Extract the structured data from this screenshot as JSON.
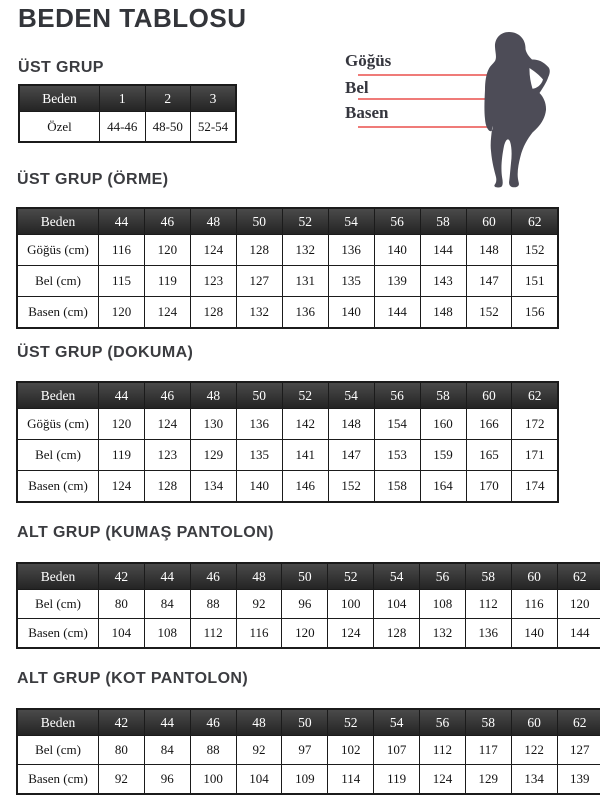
{
  "page_title": "BEDEN TABLOSU",
  "diagram": {
    "labels": [
      "Göğüs",
      "Bel",
      "Basen"
    ]
  },
  "sections": [
    {
      "heading": "ÜST GRUP",
      "table": {
        "header": [
          "Beden",
          "1",
          "2",
          "3"
        ],
        "rows": [
          [
            "Özel",
            "44-46",
            "48-50",
            "52-54"
          ]
        ]
      }
    },
    {
      "heading": "ÜST GRUP (ÖRME)",
      "table": {
        "header": [
          "Beden",
          "44",
          "46",
          "48",
          "50",
          "52",
          "54",
          "56",
          "58",
          "60",
          "62"
        ],
        "rows": [
          [
            "Göğüs (cm)",
            "116",
            "120",
            "124",
            "128",
            "132",
            "136",
            "140",
            "144",
            "148",
            "152"
          ],
          [
            "Bel (cm)",
            "115",
            "119",
            "123",
            "127",
            "131",
            "135",
            "139",
            "143",
            "147",
            "151"
          ],
          [
            "Basen (cm)",
            "120",
            "124",
            "128",
            "132",
            "136",
            "140",
            "144",
            "148",
            "152",
            "156"
          ]
        ]
      }
    },
    {
      "heading": "ÜST GRUP (DOKUMA)",
      "table": {
        "header": [
          "Beden",
          "44",
          "46",
          "48",
          "50",
          "52",
          "54",
          "56",
          "58",
          "60",
          "62"
        ],
        "rows": [
          [
            "Göğüs (cm)",
            "120",
            "124",
            "130",
            "136",
            "142",
            "148",
            "154",
            "160",
            "166",
            "172"
          ],
          [
            "Bel (cm)",
            "119",
            "123",
            "129",
            "135",
            "141",
            "147",
            "153",
            "159",
            "165",
            "171"
          ],
          [
            "Basen (cm)",
            "124",
            "128",
            "134",
            "140",
            "146",
            "152",
            "158",
            "164",
            "170",
            "174"
          ]
        ]
      }
    },
    {
      "heading": "ALT GRUP (KUMAŞ PANTOLON)",
      "table": {
        "header": [
          "Beden",
          "42",
          "44",
          "46",
          "48",
          "50",
          "52",
          "54",
          "56",
          "58",
          "60",
          "62"
        ],
        "rows": [
          [
            "Bel (cm)",
            "80",
            "84",
            "88",
            "92",
            "96",
            "100",
            "104",
            "108",
            "112",
            "116",
            "120"
          ],
          [
            "Basen (cm)",
            "104",
            "108",
            "112",
            "116",
            "120",
            "124",
            "128",
            "132",
            "136",
            "140",
            "144"
          ]
        ]
      }
    },
    {
      "heading": "ALT GRUP (KOT PANTOLON)",
      "table": {
        "header": [
          "Beden",
          "42",
          "44",
          "46",
          "48",
          "50",
          "52",
          "54",
          "56",
          "58",
          "60",
          "62"
        ],
        "rows": [
          [
            "Bel (cm)",
            "80",
            "84",
            "88",
            "92",
            "97",
            "102",
            "107",
            "112",
            "117",
            "122",
            "127"
          ],
          [
            "Basen (cm)",
            "92",
            "96",
            "100",
            "104",
            "109",
            "114",
            "119",
            "124",
            "129",
            "134",
            "139"
          ]
        ]
      }
    }
  ],
  "colors": {
    "silhouette": "#4d4c57",
    "measure_line": "#ef7b78",
    "border": "#1b1b1b",
    "heading_text": "#3b3c40",
    "table_header_bg": "#2e2e2e",
    "table_header_text": "#ffffff"
  }
}
